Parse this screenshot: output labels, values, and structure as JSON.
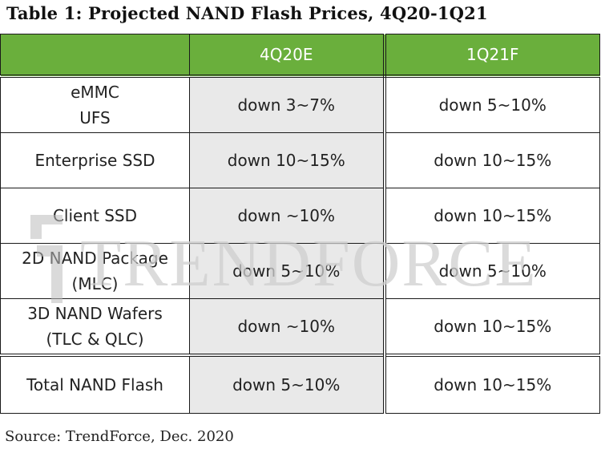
{
  "title": "Table 1: Projected NAND Flash Prices, 4Q20-1Q21",
  "header": {
    "corner": "",
    "col_4q20e": "4Q20E",
    "col_1q21f": "1Q21F"
  },
  "rows": [
    {
      "product_line1": "eMMC",
      "product_line2": "UFS",
      "q4": "down 3~7%",
      "q1": "down 5~10%"
    },
    {
      "product_line1": "Enterprise SSD",
      "product_line2": "",
      "q4": "down 10~15%",
      "q1": "down 10~15%"
    },
    {
      "product_line1": "Client SSD",
      "product_line2": "",
      "q4": "down ~10%",
      "q1": "down 10~15%"
    },
    {
      "product_line1": "2D NAND Package",
      "product_line2": "(MLC)",
      "q4": "down 5~10%",
      "q1": "down 5~10%"
    },
    {
      "product_line1": "3D NAND Wafers",
      "product_line2": "(TLC & QLC)",
      "q4": "down ~10%",
      "q1": "down 10~15%"
    },
    {
      "product_line1": "Total NAND Flash",
      "product_line2": "",
      "q4": "down 5~10%",
      "q1": "down 10~15%"
    }
  ],
  "watermark": {
    "text": "TRENDFORCE",
    "color": "#cfcfcf"
  },
  "colors": {
    "header_green": "#6aaf3c",
    "shaded_column": "#e9e9e9",
    "border": "#1a1a1a"
  },
  "source": "Source: TrendForce, Dec. 2020"
}
